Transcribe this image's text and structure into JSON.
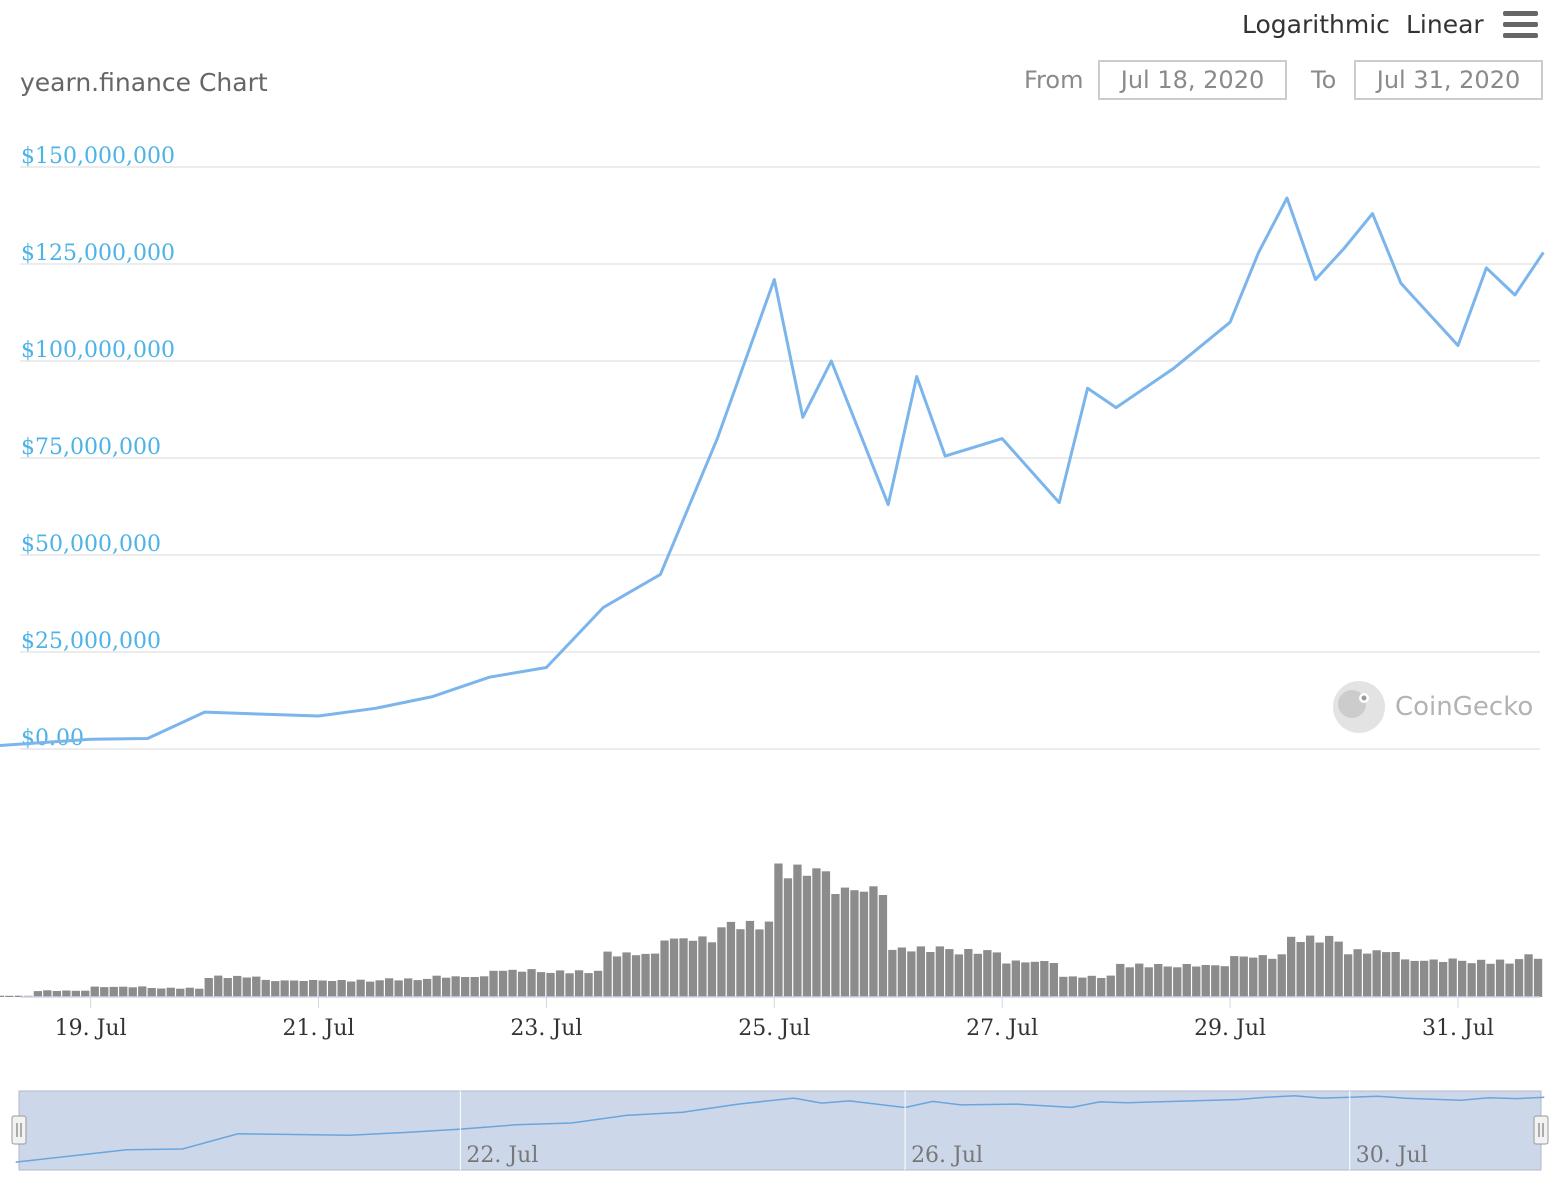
{
  "header": {
    "title": "yearn.finance Chart",
    "scale_options": [
      "Logarithmic",
      "Linear"
    ],
    "from_label": "From",
    "from_value": "Jul 18, 2020",
    "to_label": "To",
    "to_value": "Jul 31, 2020"
  },
  "watermark": "CoinGecko",
  "colors": {
    "line": "#7cb5ec",
    "volume": "#8c8c8c",
    "axis_label": "#4cb3e6",
    "navigator_fill": "#cdd7ea"
  },
  "chart_data": {
    "type": "line",
    "title": "yearn.finance Chart",
    "y_axis": {
      "ticks": [
        "$0.00",
        "$25,000,000",
        "$50,000,000",
        "$75,000,000",
        "$100,000,000",
        "$125,000,000",
        "$150,000,000"
      ],
      "range": [
        0,
        150000000
      ],
      "grid": true
    },
    "x_axis": {
      "ticks": [
        "19. Jul",
        "21. Jul",
        "23. Jul",
        "25. Jul",
        "27. Jul",
        "29. Jul",
        "31. Jul"
      ],
      "range": [
        "2020-07-18",
        "2020-07-31"
      ]
    },
    "navigator_ticks": [
      "22. Jul",
      "26. Jul",
      "30. Jul"
    ],
    "series": [
      {
        "type": "line",
        "points": [
          [
            "2020-07-18",
            500000
          ],
          [
            "2020-07-19",
            2500000
          ],
          [
            "2020-07-19 12:00",
            2700000
          ],
          [
            "2020-07-20",
            9500000
          ],
          [
            "2020-07-20 12:00",
            9000000
          ],
          [
            "2020-07-21",
            8500000
          ],
          [
            "2020-07-21 12:00",
            10500000
          ],
          [
            "2020-07-22",
            13500000
          ],
          [
            "2020-07-22 12:00",
            18500000
          ],
          [
            "2020-07-23",
            21000000
          ],
          [
            "2020-07-23 12:00",
            36500000
          ],
          [
            "2020-07-24",
            45000000
          ],
          [
            "2020-07-24 12:00",
            80000000
          ],
          [
            "2020-07-25",
            121000000
          ],
          [
            "2020-07-25 06:00",
            85500000
          ],
          [
            "2020-07-25 12:00",
            100000000
          ],
          [
            "2020-07-26",
            63000000
          ],
          [
            "2020-07-26 06:00",
            96000000
          ],
          [
            "2020-07-26 12:00",
            75500000
          ],
          [
            "2020-07-27",
            80000000
          ],
          [
            "2020-07-27 12:00",
            63500000
          ],
          [
            "2020-07-27 18:00",
            93000000
          ],
          [
            "2020-07-28",
            88000000
          ],
          [
            "2020-07-28 12:00",
            98000000
          ],
          [
            "2020-07-29",
            110000000
          ],
          [
            "2020-07-29 06:00",
            128000000
          ],
          [
            "2020-07-29 12:00",
            142000000
          ],
          [
            "2020-07-29 18:00",
            121000000
          ],
          [
            "2020-07-30",
            129000000
          ],
          [
            "2020-07-30 06:00",
            138000000
          ],
          [
            "2020-07-30 12:00",
            120000000
          ],
          [
            "2020-07-31",
            104000000
          ],
          [
            "2020-07-31 06:00",
            124000000
          ],
          [
            "2020-07-31 12:00",
            117000000
          ],
          [
            "2020-07-31 18:00",
            128000000
          ]
        ]
      },
      {
        "type": "column",
        "values": [
          [
            "2020-07-18",
            0.01
          ],
          [
            "2020-07-18 12:00",
            0.05
          ],
          [
            "2020-07-19",
            0.08
          ],
          [
            "2020-07-19 12:00",
            0.07
          ],
          [
            "2020-07-20",
            0.16
          ],
          [
            "2020-07-20 12:00",
            0.13
          ],
          [
            "2020-07-21",
            0.13
          ],
          [
            "2020-07-21 12:00",
            0.14
          ],
          [
            "2020-07-22",
            0.16
          ],
          [
            "2020-07-22 12:00",
            0.21
          ],
          [
            "2020-07-23",
            0.2
          ],
          [
            "2020-07-23 12:00",
            0.34
          ],
          [
            "2020-07-24",
            0.46
          ],
          [
            "2020-07-24 12:00",
            0.57
          ],
          [
            "2020-07-25",
            1.0
          ],
          [
            "2020-07-25 12:00",
            0.85
          ],
          [
            "2020-07-26",
            0.38
          ],
          [
            "2020-07-26 12:00",
            0.36
          ],
          [
            "2020-07-27",
            0.28
          ],
          [
            "2020-07-27 12:00",
            0.16
          ],
          [
            "2020-07-28",
            0.25
          ],
          [
            "2020-07-28 12:00",
            0.25
          ],
          [
            "2020-07-29",
            0.32
          ],
          [
            "2020-07-29 12:00",
            0.46
          ],
          [
            "2020-07-30",
            0.36
          ],
          [
            "2020-07-30 12:00",
            0.29
          ],
          [
            "2020-07-31",
            0.28
          ],
          [
            "2020-07-31 12:00",
            0.32
          ]
        ]
      }
    ]
  }
}
